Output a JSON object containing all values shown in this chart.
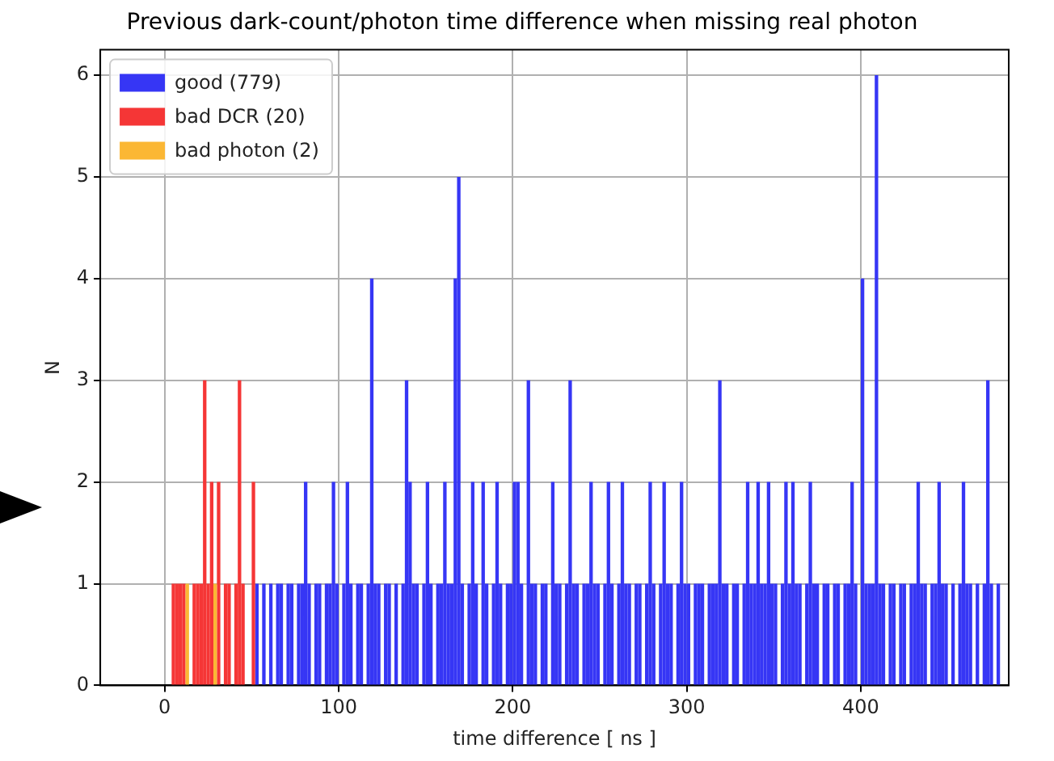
{
  "chart_data": {
    "type": "histogram",
    "title": "Previous dark-count/photon time difference when missing real photon",
    "xlabel": "time difference [ ns ]",
    "ylabel": "N",
    "bins": [
      0,
      2,
      4,
      6,
      8,
      10,
      12,
      14,
      16,
      18,
      20,
      22,
      24,
      26,
      28,
      30,
      32,
      34,
      36,
      38,
      40,
      42,
      44,
      46,
      48,
      50,
      52,
      54,
      56,
      58,
      60,
      62,
      64,
      66,
      68,
      70,
      72,
      74,
      76,
      78,
      80,
      82,
      84,
      86,
      88,
      90,
      92,
      94,
      96,
      98,
      100,
      102,
      104,
      106,
      108,
      110,
      112,
      114,
      116,
      118,
      120,
      122,
      124,
      126,
      128,
      130,
      132,
      134,
      136,
      138,
      140,
      142,
      144,
      146,
      148,
      150,
      152,
      154,
      156,
      158,
      160,
      162,
      164,
      166,
      168,
      170,
      172,
      174,
      176,
      178,
      180,
      182,
      184,
      186,
      188,
      190,
      192,
      194,
      196,
      198,
      200,
      202,
      204,
      206,
      208,
      210,
      212,
      214,
      216,
      218,
      220,
      222,
      224,
      226,
      228,
      230,
      232,
      234,
      236,
      238,
      240,
      242,
      244,
      246,
      248,
      250,
      252,
      254,
      256,
      258,
      260,
      262,
      264,
      266,
      268,
      270,
      272,
      274,
      276,
      278,
      280,
      282,
      284,
      286,
      288,
      290,
      292,
      294,
      296,
      298,
      300,
      302,
      304,
      306,
      308,
      310,
      312,
      314,
      316,
      318,
      320,
      322,
      324,
      326,
      328,
      330,
      332,
      334,
      336,
      338,
      340,
      342,
      344,
      346,
      348,
      350,
      352,
      354,
      356,
      358,
      360,
      362,
      364,
      366,
      368,
      370,
      372,
      374,
      376,
      378,
      380,
      382,
      384,
      386,
      388,
      390,
      392,
      394,
      396,
      398,
      400,
      402,
      404,
      406,
      408,
      410,
      412,
      414,
      416,
      418,
      420,
      422,
      424,
      426,
      428,
      430,
      432,
      434,
      436,
      438,
      440,
      442,
      444,
      446,
      448,
      450,
      452,
      454,
      456,
      458,
      460,
      462,
      464,
      466,
      468,
      470,
      472,
      474,
      476,
      478,
      480
    ],
    "series": [
      {
        "name": "good (779)",
        "color": "#3636f5",
        "values": [
          0,
          0,
          0,
          0,
          0,
          0,
          0,
          0,
          0,
          0,
          0,
          0,
          0,
          0,
          0,
          0,
          0,
          0,
          0,
          0,
          0,
          0,
          0,
          0,
          0,
          0,
          1,
          0,
          1,
          0,
          1,
          0,
          1,
          1,
          0,
          1,
          1,
          0,
          1,
          1,
          2,
          1,
          0,
          1,
          1,
          0,
          1,
          1,
          2,
          1,
          0,
          1,
          2,
          1,
          0,
          1,
          1,
          0,
          1,
          4,
          1,
          1,
          0,
          1,
          1,
          0,
          1,
          0,
          1,
          3,
          2,
          1,
          1,
          0,
          1,
          2,
          1,
          0,
          1,
          1,
          2,
          1,
          1,
          4,
          5,
          1,
          0,
          1,
          2,
          1,
          0,
          2,
          1,
          0,
          1,
          2,
          1,
          0,
          1,
          1,
          2,
          2,
          1,
          0,
          3,
          1,
          1,
          0,
          1,
          1,
          0,
          2,
          1,
          1,
          0,
          1,
          3,
          1,
          1,
          0,
          1,
          1,
          2,
          1,
          1,
          0,
          1,
          2,
          1,
          0,
          1,
          2,
          1,
          1,
          0,
          1,
          1,
          0,
          1,
          2,
          1,
          0,
          1,
          2,
          1,
          1,
          0,
          1,
          2,
          1,
          1,
          0,
          1,
          1,
          1,
          0,
          1,
          1,
          1,
          3,
          1,
          1,
          0,
          1,
          1,
          0,
          1,
          2,
          1,
          1,
          2,
          1,
          1,
          2,
          1,
          1,
          0,
          1,
          2,
          1,
          2,
          1,
          1,
          0,
          1,
          2,
          1,
          1,
          0,
          1,
          1,
          0,
          1,
          1,
          0,
          1,
          1,
          2,
          1,
          0,
          4,
          1,
          1,
          1,
          6,
          1,
          1,
          0,
          1,
          1,
          0,
          1,
          1,
          0,
          1,
          1,
          2,
          1,
          1,
          0,
          1,
          1,
          2,
          1,
          1,
          0,
          1,
          0,
          1,
          2,
          1,
          1,
          0,
          1,
          0,
          1,
          3,
          1,
          0,
          1
        ]
      },
      {
        "name": "bad DCR (20)",
        "color": "#f53636",
        "values": [
          0,
          0,
          1,
          1,
          1,
          1,
          0,
          0,
          1,
          1,
          1,
          3,
          1,
          2,
          0,
          2,
          0,
          1,
          1,
          0,
          1,
          3,
          1,
          0,
          0,
          2,
          0,
          0,
          0,
          0,
          0,
          0,
          0,
          0,
          0,
          0,
          0,
          0,
          0,
          0,
          0,
          0,
          0,
          0,
          0,
          0,
          0,
          0,
          0,
          0,
          0,
          0,
          0,
          0,
          0,
          0,
          0,
          0,
          0,
          0,
          0,
          0,
          0,
          0,
          0,
          0,
          0,
          0,
          0,
          0,
          0,
          0,
          0,
          0,
          0,
          0,
          0,
          0,
          0,
          0,
          0,
          0,
          0,
          0,
          0,
          0,
          0,
          0,
          0,
          0,
          0,
          0,
          0,
          0,
          0,
          0,
          0,
          0,
          0,
          0,
          0,
          0,
          0,
          0,
          0,
          0,
          0,
          0,
          0,
          0,
          0,
          0,
          0,
          0,
          0,
          0,
          0,
          0,
          0,
          0,
          0,
          0,
          0,
          0,
          0,
          0,
          0,
          0,
          0,
          0,
          0,
          0,
          0,
          0,
          0,
          0,
          0,
          0,
          0,
          0,
          0,
          0,
          0,
          0,
          0,
          0,
          0,
          0,
          0,
          0,
          0,
          0,
          0,
          0,
          0,
          0,
          0,
          0,
          0,
          0,
          0,
          0,
          0,
          0,
          0,
          0,
          0,
          0,
          0,
          0,
          0,
          0,
          0,
          0,
          0,
          0,
          0,
          0,
          0,
          0,
          0,
          0,
          0,
          0,
          0,
          0,
          0,
          0,
          0,
          0,
          0,
          0,
          0,
          0,
          0,
          0,
          0,
          0,
          0,
          0,
          0,
          0,
          0,
          0,
          0,
          0,
          0,
          0,
          0,
          0,
          0,
          0,
          0,
          0,
          0,
          0,
          0,
          0,
          0,
          0,
          0,
          0,
          0,
          0,
          0,
          0,
          0,
          0,
          0,
          0,
          0,
          0,
          0,
          0,
          0,
          0,
          0,
          0,
          0,
          0
        ]
      },
      {
        "name": "bad photon (2)",
        "color": "#fbb734",
        "values": [
          0,
          0,
          0,
          0,
          0,
          0,
          1,
          0,
          0,
          0,
          0,
          0,
          0,
          0,
          1,
          0,
          0,
          0,
          0,
          0,
          0,
          0,
          0,
          0,
          0,
          0,
          0,
          0,
          0,
          0,
          0,
          0,
          0,
          0,
          0,
          0,
          0,
          0,
          0,
          0,
          0,
          0,
          0,
          0,
          0,
          0,
          0,
          0,
          0,
          0,
          0,
          0,
          0,
          0,
          0,
          0,
          0,
          0,
          0,
          0,
          0,
          0,
          0,
          0,
          0,
          0,
          0,
          0,
          0,
          0,
          0,
          0,
          0,
          0,
          0,
          0,
          0,
          0,
          0,
          0,
          0,
          0,
          0,
          0,
          0,
          0,
          0,
          0,
          0,
          0,
          0,
          0,
          0,
          0,
          0,
          0,
          0,
          0,
          0,
          0,
          0,
          0,
          0,
          0,
          0,
          0,
          0,
          0,
          0,
          0,
          0,
          0,
          0,
          0,
          0,
          0,
          0,
          0,
          0,
          0,
          0,
          0,
          0,
          0,
          0,
          0,
          0,
          0,
          0,
          0,
          0,
          0,
          0,
          0,
          0,
          0,
          0,
          0,
          0,
          0,
          0,
          0,
          0,
          0,
          0,
          0,
          0,
          0,
          0,
          0,
          0,
          0,
          0,
          0,
          0,
          0,
          0,
          0,
          0,
          0,
          0,
          0,
          0,
          0,
          0,
          0,
          0,
          0,
          0,
          0,
          0,
          0,
          0,
          0,
          0,
          0,
          0,
          0,
          0,
          0,
          0,
          0,
          0,
          0,
          0,
          0,
          0,
          0,
          0,
          0,
          0,
          0,
          0,
          0,
          0,
          0,
          0,
          0,
          0,
          0,
          0,
          0,
          0,
          0,
          0,
          0,
          0,
          0,
          0,
          0,
          0,
          0,
          0,
          0,
          0,
          0,
          0,
          0,
          0,
          0,
          0,
          0,
          0,
          0,
          0,
          0,
          0,
          0,
          0,
          0,
          0,
          0,
          0,
          0,
          0,
          0,
          0,
          0,
          0,
          0
        ]
      }
    ],
    "xlim": [
      -37,
      485
    ],
    "ylim": [
      0,
      6.25
    ],
    "xticks": [
      0,
      100,
      200,
      300,
      400
    ],
    "yticks": [
      0,
      1,
      2,
      3,
      4,
      5,
      6
    ],
    "grid": true,
    "legend": "top left"
  }
}
